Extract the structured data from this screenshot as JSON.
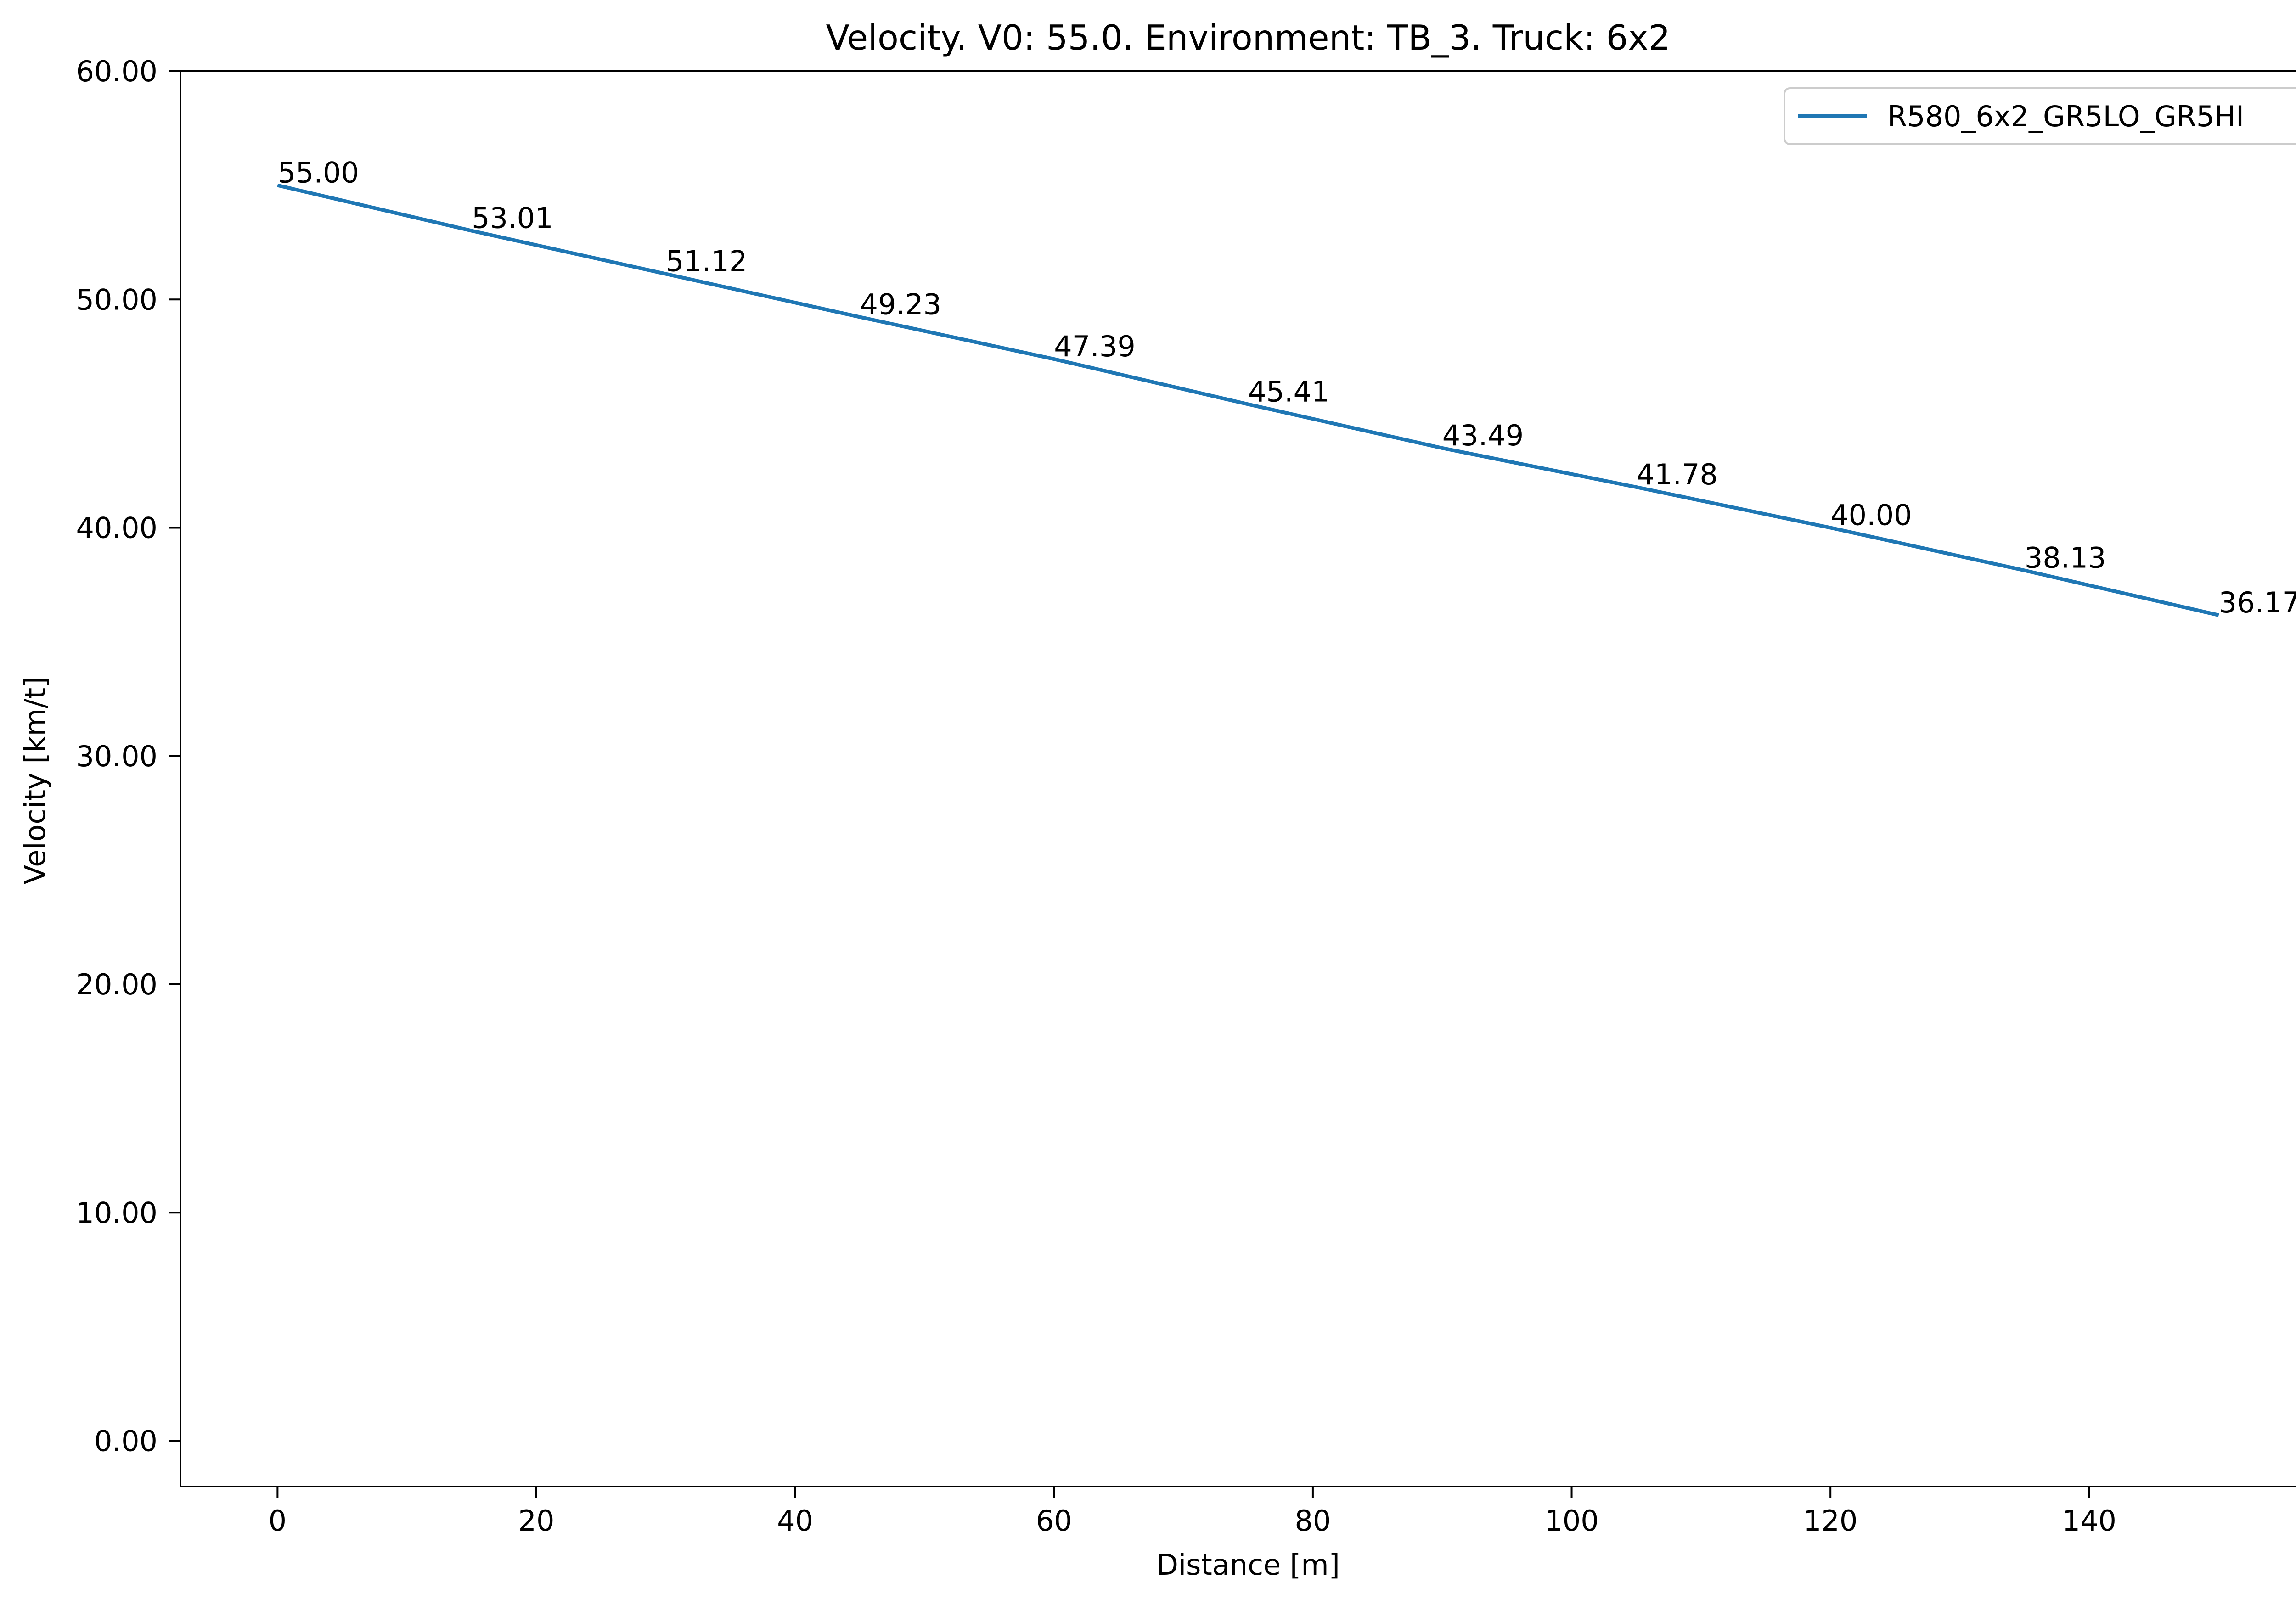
{
  "chart_data": {
    "type": "line",
    "title": "Velocity. V0: 55.0. Environment: TB_3. Truck: 6x2",
    "xlabel": "Distance [m]",
    "ylabel": "Velocity [km/t]",
    "xlim": [
      -7.5,
      157.5
    ],
    "ylim": [
      -2.0,
      60.0
    ],
    "xticks": [
      0,
      20,
      40,
      60,
      80,
      100,
      120,
      140
    ],
    "xtick_labels": [
      "0",
      "20",
      "40",
      "60",
      "80",
      "100",
      "120",
      "140"
    ],
    "yticks": [
      0,
      10,
      20,
      30,
      40,
      50,
      60
    ],
    "ytick_labels": [
      "0.00",
      "10.00",
      "20.00",
      "30.00",
      "40.00",
      "50.00",
      "60.00"
    ],
    "grid": false,
    "legend_position": "top-right",
    "series": [
      {
        "name": "R580_6x2_GR5LO_GR5HI",
        "color": "#1f77b4",
        "x": [
          0,
          15,
          30,
          45,
          60,
          75,
          90,
          105,
          120,
          135,
          150
        ],
        "y": [
          55.0,
          53.01,
          51.12,
          49.23,
          47.39,
          45.41,
          43.49,
          41.78,
          40.0,
          38.13,
          36.17
        ],
        "labels": [
          "55.00",
          "53.01",
          "51.12",
          "49.23",
          "47.39",
          "45.41",
          "43.49",
          "41.78",
          "40.00",
          "38.13",
          "36.17"
        ]
      }
    ]
  }
}
